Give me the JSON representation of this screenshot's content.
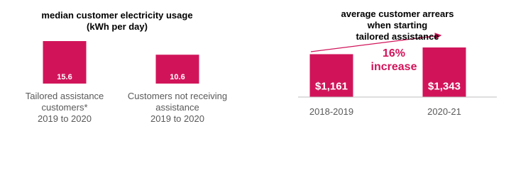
{
  "chart_data": [
    {
      "type": "bar",
      "title": "median customer electricity usage\n(kWh per day)",
      "categories": [
        "Tailored assistance\ncustomers*\n2019 to 2020",
        "Customers not receiving\nassistance\n2019 to 2020"
      ],
      "values": [
        15.6,
        10.6
      ],
      "color": "#d1145a"
    },
    {
      "type": "bar",
      "title": "average customer arrears when starting\ntailored assistance",
      "categories": [
        "2018-2019",
        "2020-21"
      ],
      "values": [
        1161,
        1343
      ],
      "value_labels": [
        "$1,161",
        "$1,343"
      ],
      "color": "#d1145a",
      "annotation": "16%\nincrease"
    }
  ]
}
